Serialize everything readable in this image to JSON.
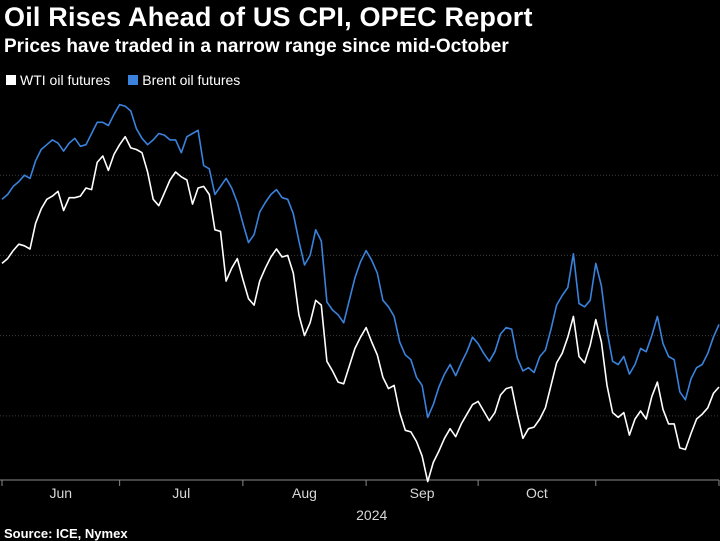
{
  "header": {
    "title": "Oil Rises Ahead of US CPI, OPEC Report",
    "subtitle": "Prices have traded in a narrow range since mid-October"
  },
  "footer": {
    "source": "Source: ICE, Nymex"
  },
  "colors": {
    "background": "#000000",
    "wti": "#ffffff",
    "brent": "#3a82dc",
    "grid": "#3c3c3c"
  },
  "chart_data": {
    "type": "line",
    "title": "Oil Rises Ahead of US CPI, OPEC Report",
    "subtitle": "Prices have traded in a narrow range since mid-October",
    "x_unit": "trading day",
    "x_ticks": [
      "Jun",
      "Jul",
      "Aug",
      "Sep",
      "Oct"
    ],
    "x_year_label": "2024",
    "y_range": [
      66,
      90
    ],
    "y_tick_values": [
      70,
      75,
      80,
      85
    ],
    "y_tick_labels_visible": false,
    "grid": true,
    "legend_position": "top-left",
    "series": [
      {
        "name": "WTI oil futures",
        "color": "#ffffff",
        "values": [
          79.5,
          79.8,
          80.3,
          80.7,
          80.6,
          80.4,
          82.0,
          82.9,
          83.5,
          83.7,
          84.0,
          82.8,
          83.6,
          83.6,
          83.7,
          84.2,
          84.1,
          85.8,
          86.2,
          85.3,
          86.3,
          86.9,
          87.4,
          86.7,
          86.6,
          86.4,
          85.2,
          83.5,
          83.1,
          83.9,
          84.7,
          85.2,
          84.9,
          84.7,
          83.2,
          84.2,
          84.3,
          83.8,
          81.6,
          81.5,
          78.4,
          79.2,
          79.8,
          78.5,
          77.3,
          76.9,
          78.4,
          79.2,
          79.9,
          80.4,
          79.9,
          80.0,
          78.9,
          76.3,
          75.0,
          75.8,
          77.2,
          76.9,
          73.4,
          72.8,
          72.1,
          72.0,
          73.1,
          74.2,
          74.9,
          75.5,
          74.6,
          73.8,
          72.4,
          71.7,
          71.9,
          70.2,
          69.1,
          69.0,
          68.4,
          67.5,
          65.9,
          67.1,
          67.8,
          68.6,
          69.2,
          68.7,
          69.5,
          70.1,
          70.7,
          70.9,
          70.3,
          69.7,
          70.2,
          71.3,
          71.7,
          71.8,
          70.1,
          68.6,
          69.2,
          69.3,
          69.8,
          70.5,
          71.9,
          73.3,
          73.9,
          74.9,
          76.2,
          73.7,
          73.3,
          74.4,
          76.0,
          74.6,
          71.9,
          70.2,
          69.9,
          70.2,
          68.8,
          69.8,
          70.3,
          69.8,
          71.2,
          72.1,
          70.4,
          69.5,
          69.5,
          68.0,
          67.9,
          68.9,
          69.8,
          70.1,
          70.5,
          71.4,
          71.8
        ]
      },
      {
        "name": "Brent oil futures",
        "color": "#3a82dc",
        "values": [
          83.5,
          83.8,
          84.3,
          84.6,
          85.0,
          84.8,
          85.9,
          86.6,
          86.9,
          87.2,
          87.0,
          86.5,
          87.0,
          87.3,
          86.8,
          86.9,
          87.6,
          88.3,
          88.3,
          88.1,
          88.8,
          89.4,
          89.3,
          89.0,
          87.9,
          87.3,
          86.9,
          87.2,
          87.6,
          87.5,
          87.2,
          87.2,
          86.4,
          87.4,
          87.6,
          87.8,
          85.6,
          85.4,
          83.8,
          84.3,
          84.8,
          84.2,
          83.3,
          82.0,
          80.8,
          81.3,
          82.7,
          83.3,
          83.8,
          84.1,
          83.6,
          83.5,
          82.6,
          80.9,
          79.4,
          80.0,
          81.6,
          80.9,
          77.1,
          76.6,
          76.3,
          75.8,
          77.2,
          78.6,
          79.6,
          80.3,
          79.7,
          78.9,
          77.2,
          76.8,
          76.2,
          74.6,
          73.8,
          73.5,
          72.4,
          71.9,
          69.9,
          70.7,
          71.8,
          72.6,
          73.2,
          72.5,
          73.3,
          74.0,
          74.9,
          74.5,
          73.9,
          73.4,
          74.0,
          75.1,
          75.5,
          75.4,
          73.6,
          72.8,
          73.0,
          72.7,
          73.7,
          74.1,
          75.4,
          76.9,
          77.5,
          78.0,
          80.1,
          77.0,
          76.8,
          77.2,
          79.5,
          78.1,
          75.3,
          73.4,
          73.2,
          73.7,
          72.6,
          73.2,
          74.2,
          74.0,
          75.0,
          76.2,
          74.5,
          73.7,
          73.5,
          71.5,
          71.0,
          72.3,
          73.0,
          73.2,
          73.9,
          74.9,
          75.7
        ]
      }
    ]
  }
}
